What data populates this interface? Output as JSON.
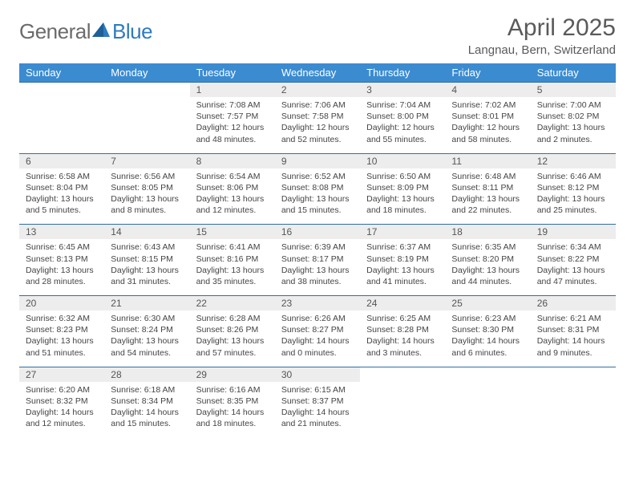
{
  "brand": {
    "part1": "General",
    "part2": "Blue"
  },
  "title": "April 2025",
  "location": "Langnau, Bern, Switzerland",
  "colors": {
    "header_bg": "#3b8bd0",
    "header_text": "#ffffff",
    "daynum_bg": "#ededed",
    "rule": "#2f6fa8",
    "logo_gray": "#6b6b6b",
    "logo_blue": "#2f7bbf"
  },
  "day_headers": [
    "Sunday",
    "Monday",
    "Tuesday",
    "Wednesday",
    "Thursday",
    "Friday",
    "Saturday"
  ],
  "weeks": [
    [
      null,
      null,
      {
        "n": "1",
        "sunrise": "7:08 AM",
        "sunset": "7:57 PM",
        "daylight": "12 hours and 48 minutes."
      },
      {
        "n": "2",
        "sunrise": "7:06 AM",
        "sunset": "7:58 PM",
        "daylight": "12 hours and 52 minutes."
      },
      {
        "n": "3",
        "sunrise": "7:04 AM",
        "sunset": "8:00 PM",
        "daylight": "12 hours and 55 minutes."
      },
      {
        "n": "4",
        "sunrise": "7:02 AM",
        "sunset": "8:01 PM",
        "daylight": "12 hours and 58 minutes."
      },
      {
        "n": "5",
        "sunrise": "7:00 AM",
        "sunset": "8:02 PM",
        "daylight": "13 hours and 2 minutes."
      }
    ],
    [
      {
        "n": "6",
        "sunrise": "6:58 AM",
        "sunset": "8:04 PM",
        "daylight": "13 hours and 5 minutes."
      },
      {
        "n": "7",
        "sunrise": "6:56 AM",
        "sunset": "8:05 PM",
        "daylight": "13 hours and 8 minutes."
      },
      {
        "n": "8",
        "sunrise": "6:54 AM",
        "sunset": "8:06 PM",
        "daylight": "13 hours and 12 minutes."
      },
      {
        "n": "9",
        "sunrise": "6:52 AM",
        "sunset": "8:08 PM",
        "daylight": "13 hours and 15 minutes."
      },
      {
        "n": "10",
        "sunrise": "6:50 AM",
        "sunset": "8:09 PM",
        "daylight": "13 hours and 18 minutes."
      },
      {
        "n": "11",
        "sunrise": "6:48 AM",
        "sunset": "8:11 PM",
        "daylight": "13 hours and 22 minutes."
      },
      {
        "n": "12",
        "sunrise": "6:46 AM",
        "sunset": "8:12 PM",
        "daylight": "13 hours and 25 minutes."
      }
    ],
    [
      {
        "n": "13",
        "sunrise": "6:45 AM",
        "sunset": "8:13 PM",
        "daylight": "13 hours and 28 minutes."
      },
      {
        "n": "14",
        "sunrise": "6:43 AM",
        "sunset": "8:15 PM",
        "daylight": "13 hours and 31 minutes."
      },
      {
        "n": "15",
        "sunrise": "6:41 AM",
        "sunset": "8:16 PM",
        "daylight": "13 hours and 35 minutes."
      },
      {
        "n": "16",
        "sunrise": "6:39 AM",
        "sunset": "8:17 PM",
        "daylight": "13 hours and 38 minutes."
      },
      {
        "n": "17",
        "sunrise": "6:37 AM",
        "sunset": "8:19 PM",
        "daylight": "13 hours and 41 minutes."
      },
      {
        "n": "18",
        "sunrise": "6:35 AM",
        "sunset": "8:20 PM",
        "daylight": "13 hours and 44 minutes."
      },
      {
        "n": "19",
        "sunrise": "6:34 AM",
        "sunset": "8:22 PM",
        "daylight": "13 hours and 47 minutes."
      }
    ],
    [
      {
        "n": "20",
        "sunrise": "6:32 AM",
        "sunset": "8:23 PM",
        "daylight": "13 hours and 51 minutes."
      },
      {
        "n": "21",
        "sunrise": "6:30 AM",
        "sunset": "8:24 PM",
        "daylight": "13 hours and 54 minutes."
      },
      {
        "n": "22",
        "sunrise": "6:28 AM",
        "sunset": "8:26 PM",
        "daylight": "13 hours and 57 minutes."
      },
      {
        "n": "23",
        "sunrise": "6:26 AM",
        "sunset": "8:27 PM",
        "daylight": "14 hours and 0 minutes."
      },
      {
        "n": "24",
        "sunrise": "6:25 AM",
        "sunset": "8:28 PM",
        "daylight": "14 hours and 3 minutes."
      },
      {
        "n": "25",
        "sunrise": "6:23 AM",
        "sunset": "8:30 PM",
        "daylight": "14 hours and 6 minutes."
      },
      {
        "n": "26",
        "sunrise": "6:21 AM",
        "sunset": "8:31 PM",
        "daylight": "14 hours and 9 minutes."
      }
    ],
    [
      {
        "n": "27",
        "sunrise": "6:20 AM",
        "sunset": "8:32 PM",
        "daylight": "14 hours and 12 minutes."
      },
      {
        "n": "28",
        "sunrise": "6:18 AM",
        "sunset": "8:34 PM",
        "daylight": "14 hours and 15 minutes."
      },
      {
        "n": "29",
        "sunrise": "6:16 AM",
        "sunset": "8:35 PM",
        "daylight": "14 hours and 18 minutes."
      },
      {
        "n": "30",
        "sunrise": "6:15 AM",
        "sunset": "8:37 PM",
        "daylight": "14 hours and 21 minutes."
      },
      null,
      null,
      null
    ]
  ],
  "labels": {
    "sunrise": "Sunrise:",
    "sunset": "Sunset:",
    "daylight": "Daylight:"
  }
}
